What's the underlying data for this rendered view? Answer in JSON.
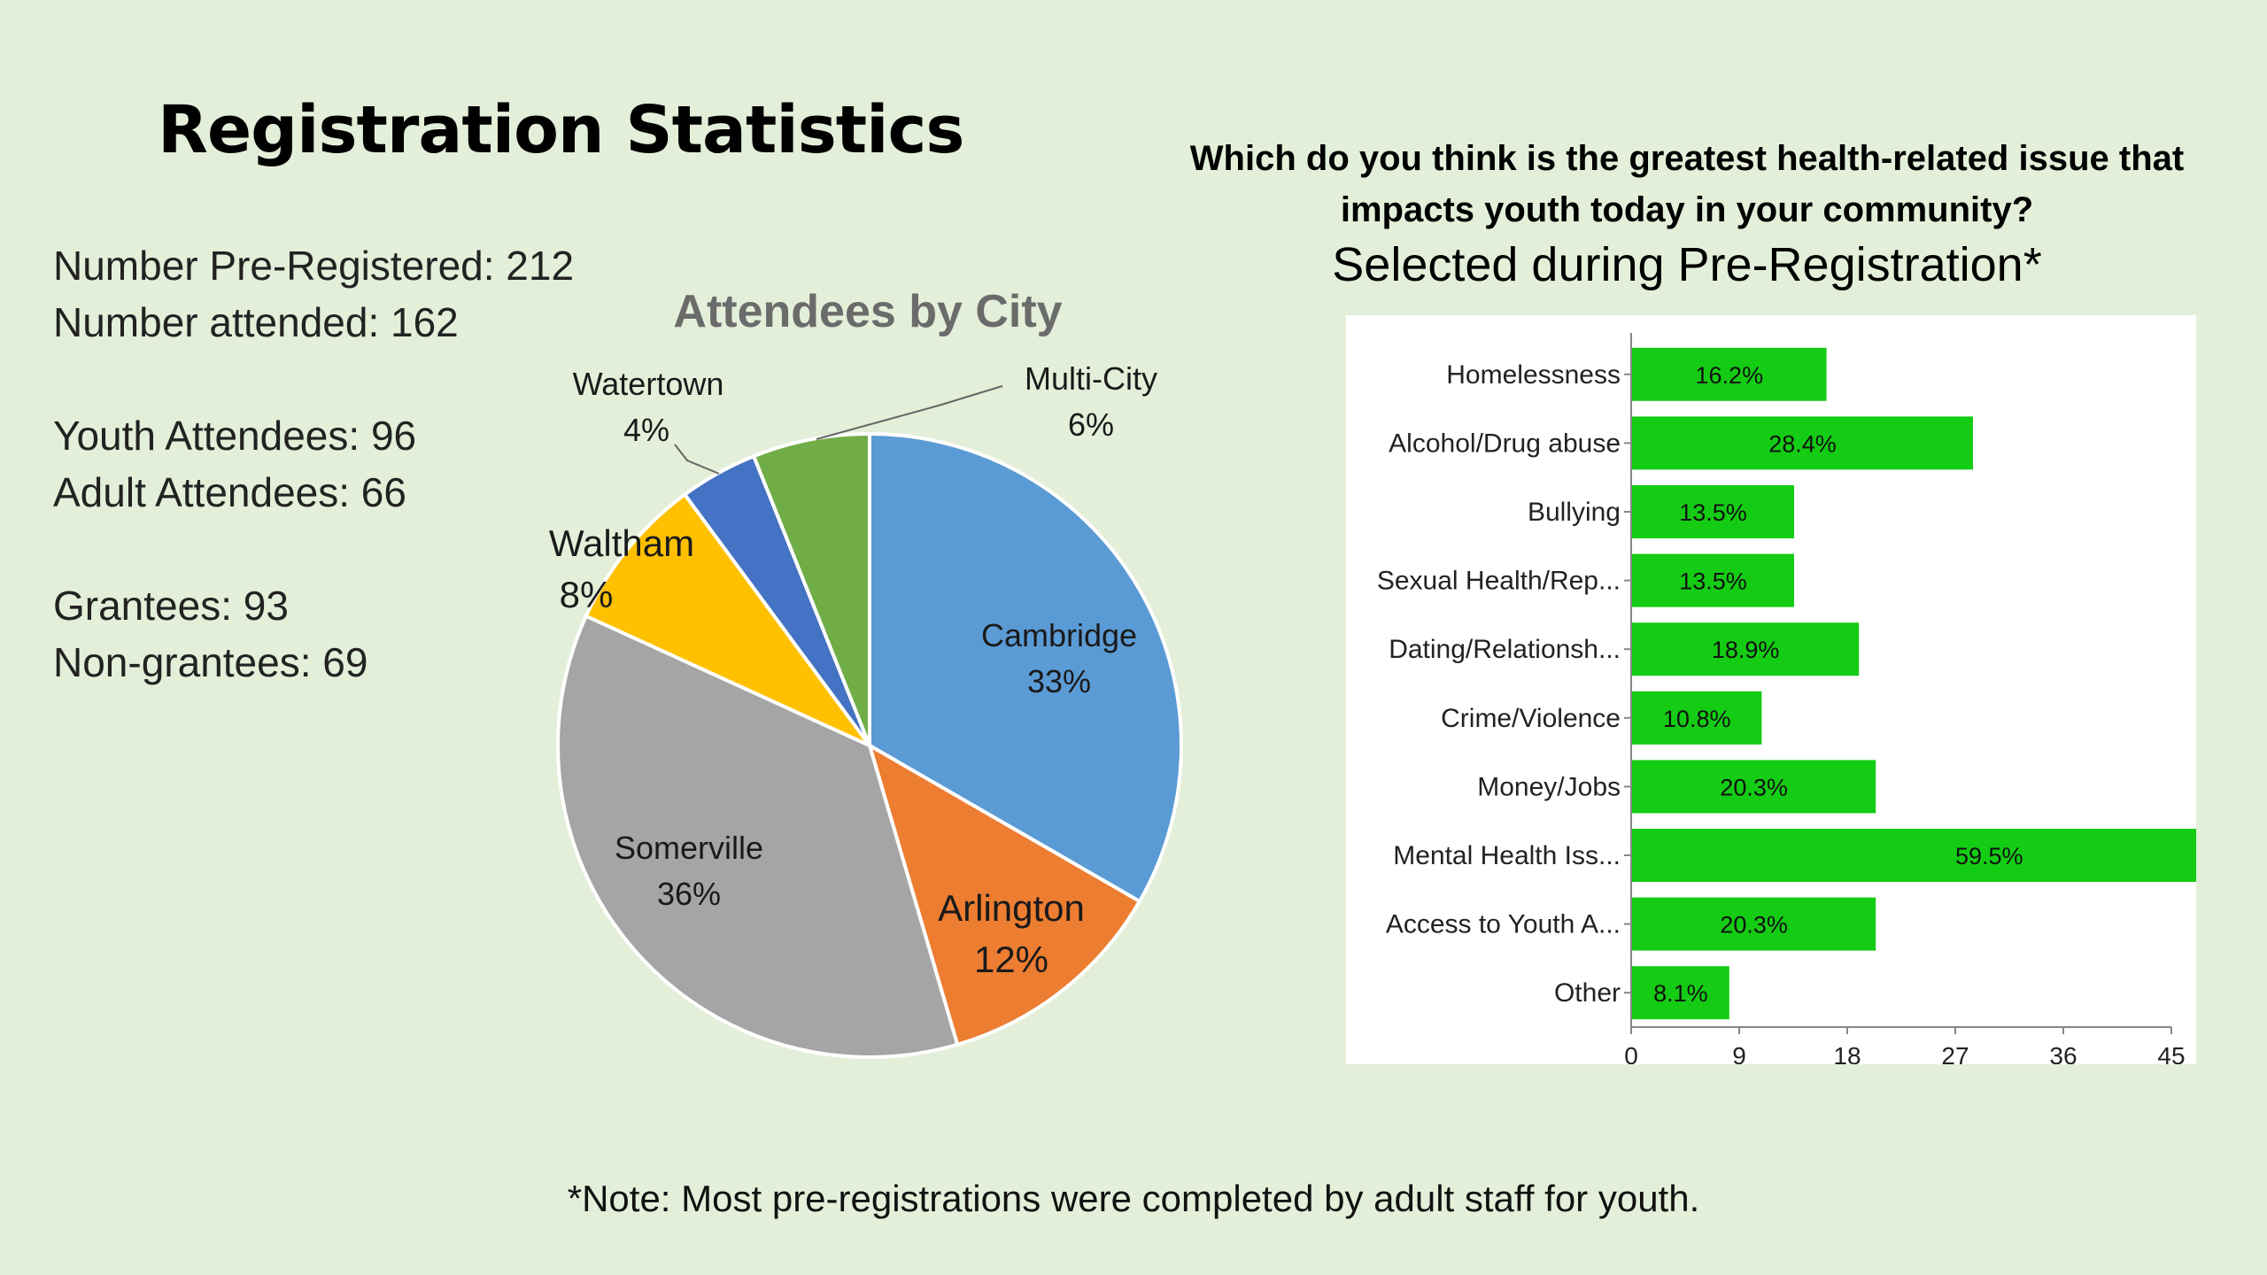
{
  "title": "Registration Statistics",
  "stats": {
    "pre_registered": "Number Pre-Registered: 212",
    "attended": "Number attended: 162",
    "youth": "Youth Attendees: 96",
    "adult": "Adult Attendees: 66",
    "grantees": "Grantees: 93",
    "non_grantees": "Non-grantees: 69"
  },
  "question": {
    "line1": "Which do you think is the greatest health-related issue that",
    "line2": "impacts youth today in your community?",
    "subtitle": "Selected during Pre-Registration*"
  },
  "footnote": "*Note: Most pre-registrations were completed by adult staff for youth.",
  "chart_data": [
    {
      "type": "pie",
      "title": "Attendees by City",
      "slices": [
        {
          "label": "Cambridge",
          "percent": 33,
          "display": "33%",
          "color": "#5b9bd5"
        },
        {
          "label": "Arlington",
          "percent": 12,
          "display": "12%",
          "color": "#ed7d31"
        },
        {
          "label": "Somerville",
          "percent": 36,
          "display": "36%",
          "color": "#a5a5a5"
        },
        {
          "label": "Waltham",
          "percent": 8,
          "display": "8%",
          "color": "#ffc000"
        },
        {
          "label": "Watertown",
          "percent": 4,
          "display": "4%",
          "color": "#4472c4"
        },
        {
          "label": "Multi-City",
          "percent": 6,
          "display": "6%",
          "color": "#70ad47"
        }
      ]
    },
    {
      "type": "bar",
      "orientation": "horizontal",
      "categories": [
        "Homelessness",
        "Alcohol/Drug abuse",
        "Bullying",
        "Sexual Health/Rep...",
        "Dating/Relationsh...",
        "Crime/Violence",
        "Money/Jobs",
        "Mental Health Iss...",
        "Access to Youth A...",
        "Other"
      ],
      "values": [
        16.2,
        28.4,
        13.5,
        13.5,
        18.9,
        10.8,
        20.3,
        59.5,
        20.3,
        8.1
      ],
      "value_labels": [
        "16.2%",
        "28.4%",
        "13.5%",
        "13.5%",
        "18.9%",
        "10.8%",
        "20.3%",
        "59.5%",
        "20.3%",
        "8.1%"
      ],
      "xticks": [
        0,
        9,
        18,
        27,
        36,
        45
      ],
      "xlim": [
        0,
        45
      ],
      "bar_color": "#14cc14"
    }
  ]
}
